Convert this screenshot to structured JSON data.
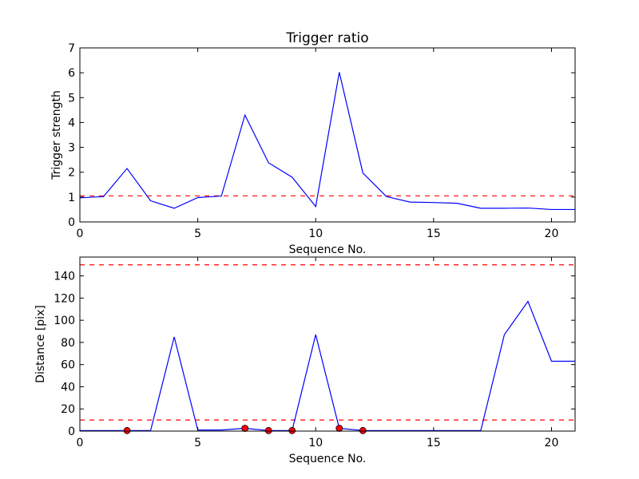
{
  "chart_data": [
    {
      "type": "line",
      "title": "Trigger ratio",
      "xlabel": "Sequence No.",
      "ylabel": "Trigger strength",
      "xlim": [
        0,
        21
      ],
      "ylim": [
        0,
        7
      ],
      "xticks": [
        0,
        5,
        10,
        15,
        20
      ],
      "yticks": [
        0,
        1,
        2,
        3,
        4,
        5,
        6,
        7
      ],
      "grid": false,
      "series": [
        {
          "color": "#0000ff",
          "x": [
            0,
            1,
            2,
            3,
            4,
            5,
            6,
            7,
            8,
            9,
            10,
            11,
            12,
            13,
            14,
            15,
            16,
            17,
            18,
            19,
            20,
            21
          ],
          "y": [
            0.97,
            1.02,
            2.15,
            0.85,
            0.55,
            0.98,
            1.04,
            4.3,
            2.38,
            1.8,
            0.62,
            6.02,
            1.97,
            1.02,
            0.8,
            0.78,
            0.75,
            0.55,
            0.55,
            0.56,
            0.5,
            0.5
          ]
        }
      ],
      "hlines": [
        {
          "y": 1.05,
          "color": "#ff0000",
          "style": "dashed"
        }
      ]
    },
    {
      "type": "line",
      "title": "",
      "xlabel": "Sequence No.",
      "ylabel": "Distance [pix]",
      "xlim": [
        0,
        21
      ],
      "ylim": [
        0,
        157
      ],
      "xticks": [
        0,
        5,
        10,
        15,
        20
      ],
      "yticks": [
        0,
        20,
        40,
        60,
        80,
        100,
        120,
        140
      ],
      "grid": false,
      "series": [
        {
          "color": "#0000ff",
          "x": [
            0,
            1,
            2,
            3,
            4,
            5,
            6,
            7,
            8,
            9,
            10,
            11,
            12,
            13,
            14,
            15,
            16,
            17,
            18,
            19,
            20,
            21
          ],
          "y": [
            0.5,
            0.5,
            0.5,
            0.5,
            85,
            1,
            1,
            2.5,
            0.5,
            0.5,
            87,
            2.5,
            0.5,
            0.5,
            0.5,
            0.5,
            0.5,
            0.5,
            87,
            117,
            63,
            63
          ]
        }
      ],
      "markers": {
        "color": "#ff0000",
        "edge_color": "#000000",
        "x": [
          2,
          7,
          8,
          9,
          11,
          12
        ],
        "y": [
          0.5,
          2.5,
          0.5,
          0.5,
          2.5,
          0.5
        ]
      },
      "hlines": [
        {
          "y": 150,
          "color": "#ff0000",
          "style": "dashed"
        },
        {
          "y": 10,
          "color": "#ff0000",
          "style": "dashed"
        }
      ]
    }
  ]
}
